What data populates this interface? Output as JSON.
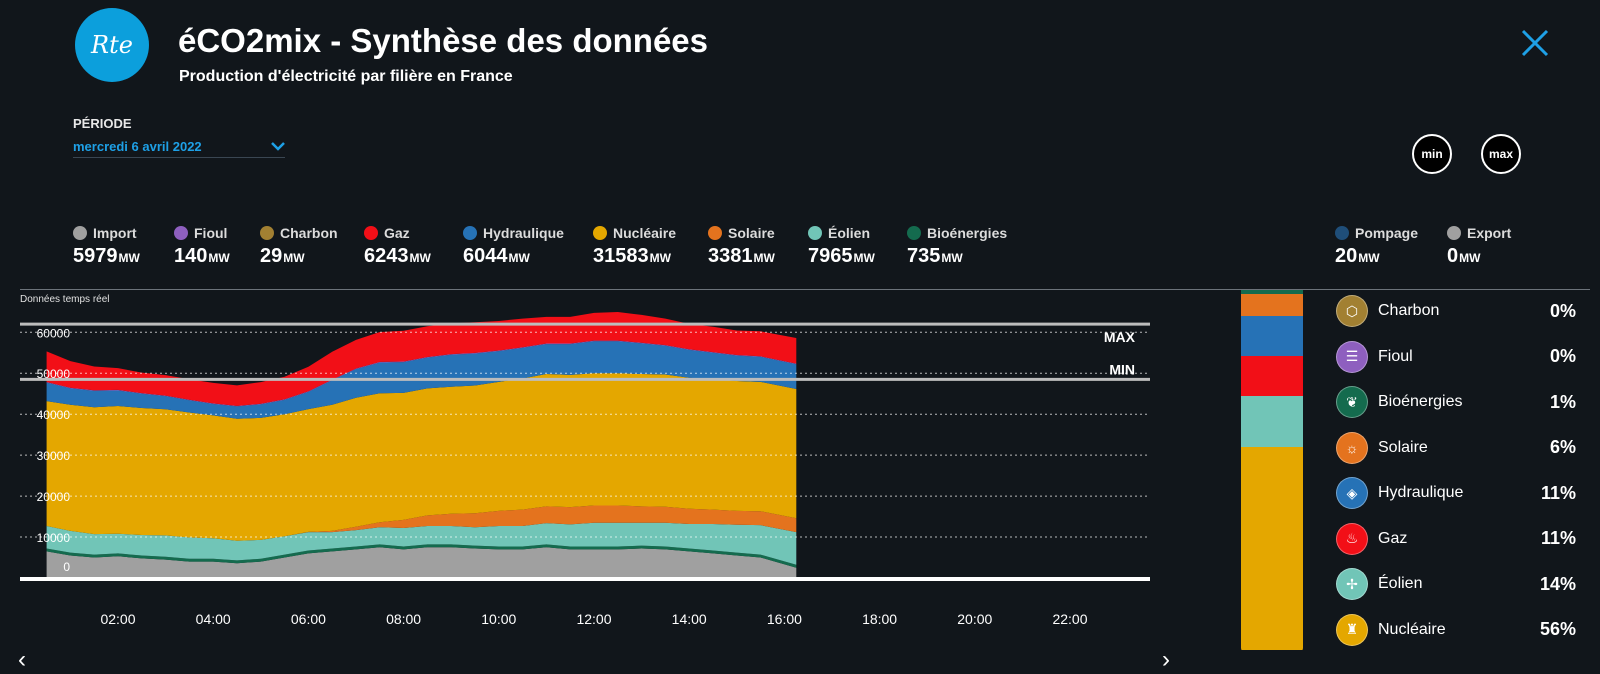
{
  "app": {
    "title": "éCO2mix - Synthèse des données",
    "subtitle": "Production d'électricité par filière en France",
    "logo_text": "Rte"
  },
  "periode": {
    "label": "PÉRIODE",
    "value": "mercredi 6 avril 2022"
  },
  "buttons": {
    "min": "min",
    "max": "max"
  },
  "unit": "MW",
  "stats": [
    {
      "name": "Import",
      "value": "5979",
      "color": "#a0a0a0",
      "icon": "arrow-down-icon"
    },
    {
      "name": "Fioul",
      "value": "140",
      "color": "#8e5fbf",
      "icon": "barrel-icon"
    },
    {
      "name": "Charbon",
      "value": "29",
      "color": "#a28032",
      "icon": "coal-icon"
    },
    {
      "name": "Gaz",
      "value": "6243",
      "color": "#f20f17",
      "icon": "flame-icon"
    },
    {
      "name": "Hydraulique",
      "value": "6044",
      "color": "#2672b6",
      "icon": "water-drop-icon"
    },
    {
      "name": "Nucléaire",
      "value": "31583",
      "color": "#e4a700",
      "icon": "nuclear-icon"
    },
    {
      "name": "Solaire",
      "value": "3381",
      "color": "#e4731e",
      "icon": "sun-icon"
    },
    {
      "name": "Éolien",
      "value": "7965",
      "color": "#71c5b7",
      "icon": "wind-turbine-icon"
    },
    {
      "name": "Bioénergies",
      "value": "735",
      "color": "#146b4e",
      "icon": "leaf-icon"
    }
  ],
  "stats_right": [
    {
      "name": "Pompage",
      "value": "20",
      "color": "#1f4e79",
      "icon": "pump-icon"
    },
    {
      "name": "Export",
      "value": "0",
      "color": "#a0a0a0",
      "icon": "arrow-up-icon"
    }
  ],
  "realtime_label": "Données temps réel",
  "chart_data": {
    "type": "area",
    "title": "Production d'électricité par filière en France",
    "ylim": [
      0,
      63000
    ],
    "yticks": [
      0,
      10000,
      20000,
      30000,
      40000,
      50000,
      60000
    ],
    "ytick_labels": [
      "0",
      "10000",
      "20000",
      "30000",
      "40000",
      "50000",
      "60000"
    ],
    "xlim": [
      0.5,
      24.3
    ],
    "xticks": [
      2,
      4,
      6,
      8,
      10,
      12,
      14,
      16,
      18,
      20,
      22
    ],
    "xtick_labels": [
      "02:00",
      "04:00",
      "06:00",
      "08:00",
      "10:00",
      "12:00",
      "14:00",
      "16:00",
      "18:00",
      "20:00",
      "22:00"
    ],
    "max_value": 62000,
    "min_value": 48500,
    "max_label": "MAX",
    "min_label": "MIN",
    "x": [
      0.5,
      1,
      1.5,
      2,
      2.5,
      3,
      3.5,
      4,
      4.5,
      5,
      5.5,
      6,
      6.5,
      7,
      7.5,
      8,
      8.5,
      9,
      9.5,
      10,
      10.5,
      11,
      11.5,
      12,
      12.5,
      13,
      13.5,
      14,
      14.5,
      15,
      15.5,
      16.25
    ],
    "series": [
      {
        "name": "Import",
        "color": "#a0a0a0",
        "values": [
          6500,
          5500,
          5000,
          5300,
          4800,
          4500,
          4000,
          4000,
          3600,
          4000,
          5000,
          6000,
          6500,
          7000,
          7500,
          7000,
          7500,
          7500,
          7200,
          7000,
          7000,
          7500,
          7000,
          7000,
          7000,
          7200,
          7000,
          6500,
          6000,
          5500,
          5000,
          2500
        ]
      },
      {
        "name": "Bioénergies",
        "color": "#146b4e",
        "values": [
          700,
          700,
          700,
          700,
          700,
          700,
          700,
          700,
          700,
          700,
          700,
          700,
          700,
          700,
          700,
          700,
          700,
          700,
          700,
          700,
          700,
          700,
          700,
          700,
          700,
          700,
          700,
          700,
          700,
          700,
          700,
          735
        ]
      },
      {
        "name": "Éolien",
        "color": "#71c5b7",
        "values": [
          5500,
          5300,
          5000,
          4800,
          5000,
          5200,
          5200,
          5000,
          4800,
          4600,
          4500,
          4500,
          4000,
          4000,
          4200,
          4500,
          4500,
          4500,
          4500,
          5000,
          5000,
          5200,
          5400,
          5800,
          5800,
          5600,
          5800,
          6000,
          6500,
          6800,
          7200,
          7965
        ]
      },
      {
        "name": "Solaire",
        "color": "#e4731e",
        "values": [
          0,
          0,
          0,
          0,
          0,
          0,
          0,
          0,
          0,
          0,
          0,
          50,
          300,
          800,
          1200,
          2000,
          2600,
          3000,
          3400,
          3700,
          4000,
          4100,
          4200,
          4200,
          4200,
          4000,
          3900,
          3700,
          3500,
          3400,
          3400,
          3381
        ]
      },
      {
        "name": "Nucléaire",
        "color": "#e4a700",
        "values": [
          30500,
          30800,
          31000,
          31200,
          31000,
          30800,
          30500,
          30000,
          29800,
          29800,
          29800,
          30000,
          30800,
          31500,
          31500,
          31000,
          31000,
          31000,
          31200,
          31500,
          32000,
          32300,
          32300,
          32300,
          32300,
          32300,
          32300,
          32000,
          31800,
          31700,
          31600,
          31583
        ]
      },
      {
        "name": "Hydraulique",
        "color": "#2672b6",
        "values": [
          4500,
          4000,
          4000,
          3800,
          3500,
          3200,
          3000,
          2800,
          3000,
          3300,
          3500,
          4200,
          6000,
          7000,
          7500,
          7500,
          7500,
          7800,
          7800,
          7500,
          7500,
          7300,
          7500,
          7800,
          7800,
          7500,
          7000,
          6800,
          6500,
          6200,
          6100,
          6044
        ]
      },
      {
        "name": "Fioul",
        "color": "#8e5fbf",
        "values": [
          150,
          150,
          150,
          150,
          140,
          140,
          140,
          140,
          140,
          140,
          140,
          140,
          150,
          150,
          160,
          170,
          170,
          170,
          160,
          160,
          150,
          150,
          150,
          150,
          150,
          150,
          150,
          150,
          145,
          140,
          140,
          140
        ]
      },
      {
        "name": "Gaz",
        "color": "#f20f17",
        "values": [
          7500,
          6500,
          5800,
          5300,
          5000,
          5000,
          5000,
          5000,
          5000,
          5300,
          5500,
          6000,
          6800,
          7000,
          7300,
          7500,
          7500,
          7500,
          7500,
          7200,
          7000,
          6500,
          6500,
          6800,
          7000,
          6800,
          6500,
          6200,
          6200,
          6000,
          6100,
          6243
        ]
      }
    ]
  },
  "legend": [
    {
      "name": "Charbon",
      "pct": "0%",
      "color": "#a28032",
      "icon": "coal-icon",
      "glyph": "⬡"
    },
    {
      "name": "Fioul",
      "pct": "0%",
      "color": "#8e5fbf",
      "icon": "barrel-icon",
      "glyph": "☰"
    },
    {
      "name": "Bioénergies",
      "pct": "1%",
      "color": "#146b4e",
      "icon": "leaf-icon",
      "glyph": "❦"
    },
    {
      "name": "Solaire",
      "pct": "6%",
      "color": "#e4731e",
      "icon": "sun-icon",
      "glyph": "☼"
    },
    {
      "name": "Hydraulique",
      "pct": "11%",
      "color": "#2672b6",
      "icon": "water-drop-icon",
      "glyph": "◈"
    },
    {
      "name": "Gaz",
      "pct": "11%",
      "color": "#f20f17",
      "icon": "flame-icon",
      "glyph": "♨"
    },
    {
      "name": "Éolien",
      "pct": "14%",
      "color": "#71c5b7",
      "icon": "wind-turbine-icon",
      "glyph": "✢"
    },
    {
      "name": "Nucléaire",
      "pct": "56%",
      "color": "#e4a700",
      "icon": "nuclear-icon",
      "glyph": "♜"
    }
  ],
  "mix_bar": [
    {
      "name": "Bioénergies",
      "pct": 1,
      "color": "#146b4e"
    },
    {
      "name": "Solaire",
      "pct": 6,
      "color": "#e4731e"
    },
    {
      "name": "Hydraulique",
      "pct": 11,
      "color": "#2672b6"
    },
    {
      "name": "Gaz",
      "pct": 11,
      "color": "#f20f17"
    },
    {
      "name": "Éolien",
      "pct": 14,
      "color": "#71c5b7"
    },
    {
      "name": "Nucléaire",
      "pct": 56,
      "color": "#e4a700"
    }
  ]
}
